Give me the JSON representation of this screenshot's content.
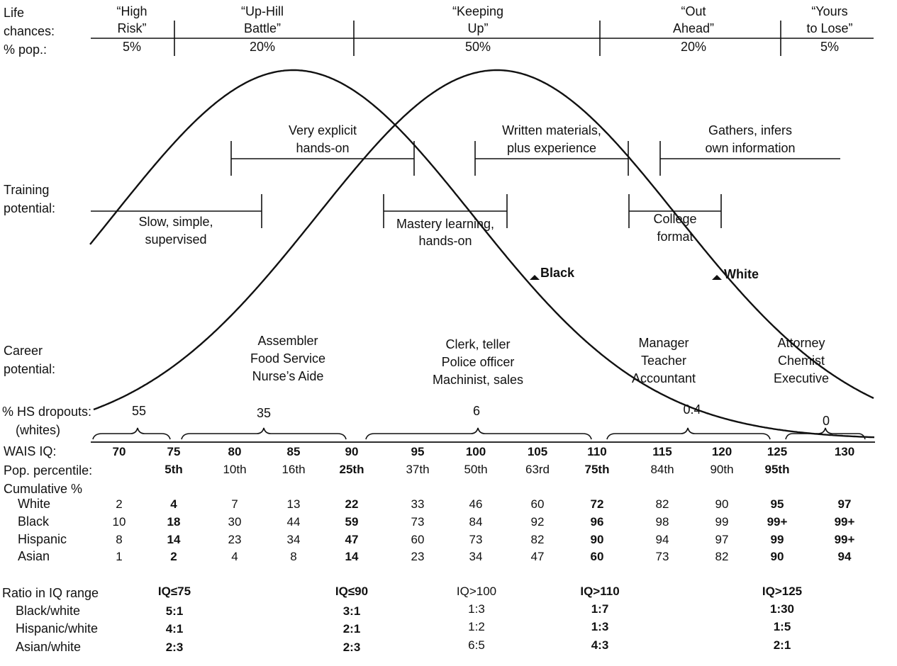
{
  "colors": {
    "ink": "#111111",
    "background": "#ffffff"
  },
  "curves": {
    "black_label": "Black",
    "white_label": "White",
    "black_mean_iq": 85,
    "white_mean_iq": 102,
    "black_marker": "triangle-marker-icon",
    "white_marker": "triangle-marker-icon"
  },
  "row_labels": {
    "life_chances": [
      "Life",
      "chances:"
    ],
    "pct_pop": "% pop.:",
    "training": [
      "Training",
      "potential:"
    ],
    "career": [
      "Career",
      "potential:"
    ],
    "hs_dropouts": [
      "% HS dropouts:",
      "(whites)"
    ],
    "wais_iq": "WAIS IQ:",
    "pop_percentile": "Pop. percentile:",
    "cumulative": "Cumulative %",
    "ratio": "Ratio in IQ range"
  },
  "life_chances": [
    {
      "label": [
        "“High",
        "Risk”"
      ],
      "pct": "5%"
    },
    {
      "label": [
        "“Up-Hill",
        "Battle”"
      ],
      "pct": "20%"
    },
    {
      "label": [
        "“Keeping",
        "Up”"
      ],
      "pct": "50%"
    },
    {
      "label": [
        "“Out",
        "Ahead”"
      ],
      "pct": "20%"
    },
    {
      "label": [
        "“Yours",
        "to Lose”"
      ],
      "pct": "5%"
    }
  ],
  "training": [
    {
      "label": [
        "Slow, simple,",
        "supervised"
      ]
    },
    {
      "label": [
        "Very explicit",
        "hands-on"
      ]
    },
    {
      "label": [
        "Mastery learning,",
        "hands-on"
      ]
    },
    {
      "label": [
        "Written materials,",
        "plus experience"
      ]
    },
    {
      "label": [
        "College",
        "format"
      ]
    },
    {
      "label": [
        "Gathers, infers",
        "own information"
      ]
    }
  ],
  "career": [
    [
      "Assembler",
      "Food Service",
      "Nurse’s Aide"
    ],
    [
      "Clerk, teller",
      "Police officer",
      "Machinist, sales"
    ],
    [
      "Manager",
      "Teacher",
      "Accountant"
    ],
    [
      "Attorney",
      "Chemist",
      "Executive"
    ]
  ],
  "hs_dropouts": [
    "55",
    "35",
    "6",
    "0.4",
    "0"
  ],
  "iq_values": [
    "70",
    "75",
    "80",
    "85",
    "90",
    "95",
    "100",
    "105",
    "110",
    "115",
    "120",
    "125",
    "130"
  ],
  "bold_iq_index": [
    0,
    1,
    2,
    3,
    4,
    5,
    6,
    7,
    8,
    9,
    10,
    11,
    12
  ],
  "percentiles": [
    "",
    "5th",
    "10th",
    "16th",
    "25th",
    "37th",
    "50th",
    "63rd",
    "75th",
    "84th",
    "90th",
    "95th",
    ""
  ],
  "bold_cols": [
    1,
    4,
    8,
    11,
    12
  ],
  "cumulative": [
    {
      "group": "White",
      "values": [
        "2",
        "4",
        "7",
        "13",
        "22",
        "33",
        "46",
        "60",
        "72",
        "82",
        "90",
        "95",
        "97"
      ]
    },
    {
      "group": "Black",
      "values": [
        "10",
        "18",
        "30",
        "44",
        "59",
        "73",
        "84",
        "92",
        "96",
        "98",
        "99",
        "99+",
        "99+"
      ]
    },
    {
      "group": "Hispanic",
      "values": [
        "8",
        "14",
        "23",
        "34",
        "47",
        "60",
        "73",
        "82",
        "90",
        "94",
        "97",
        "99",
        "99+"
      ]
    },
    {
      "group": "Asian",
      "values": [
        "1",
        "2",
        "4",
        "8",
        "14",
        "23",
        "34",
        "47",
        "60",
        "73",
        "82",
        "90",
        "94"
      ]
    }
  ],
  "ratios": {
    "headers": [
      "IQ≤75",
      "IQ≤90",
      "IQ>100",
      "IQ>110",
      "IQ>125"
    ],
    "bold_cols": [
      0,
      1,
      3,
      4
    ],
    "rows": [
      {
        "label": "Black/white",
        "values": [
          "5:1",
          "3:1",
          "1:3",
          "1:7",
          "1:30"
        ]
      },
      {
        "label": "Hispanic/white",
        "values": [
          "4:1",
          "2:1",
          "1:2",
          "1:3",
          "1:5"
        ]
      },
      {
        "label": "Asian/white",
        "values": [
          "2:3",
          "2:3",
          "6:5",
          "4:3",
          "2:1"
        ]
      }
    ]
  }
}
